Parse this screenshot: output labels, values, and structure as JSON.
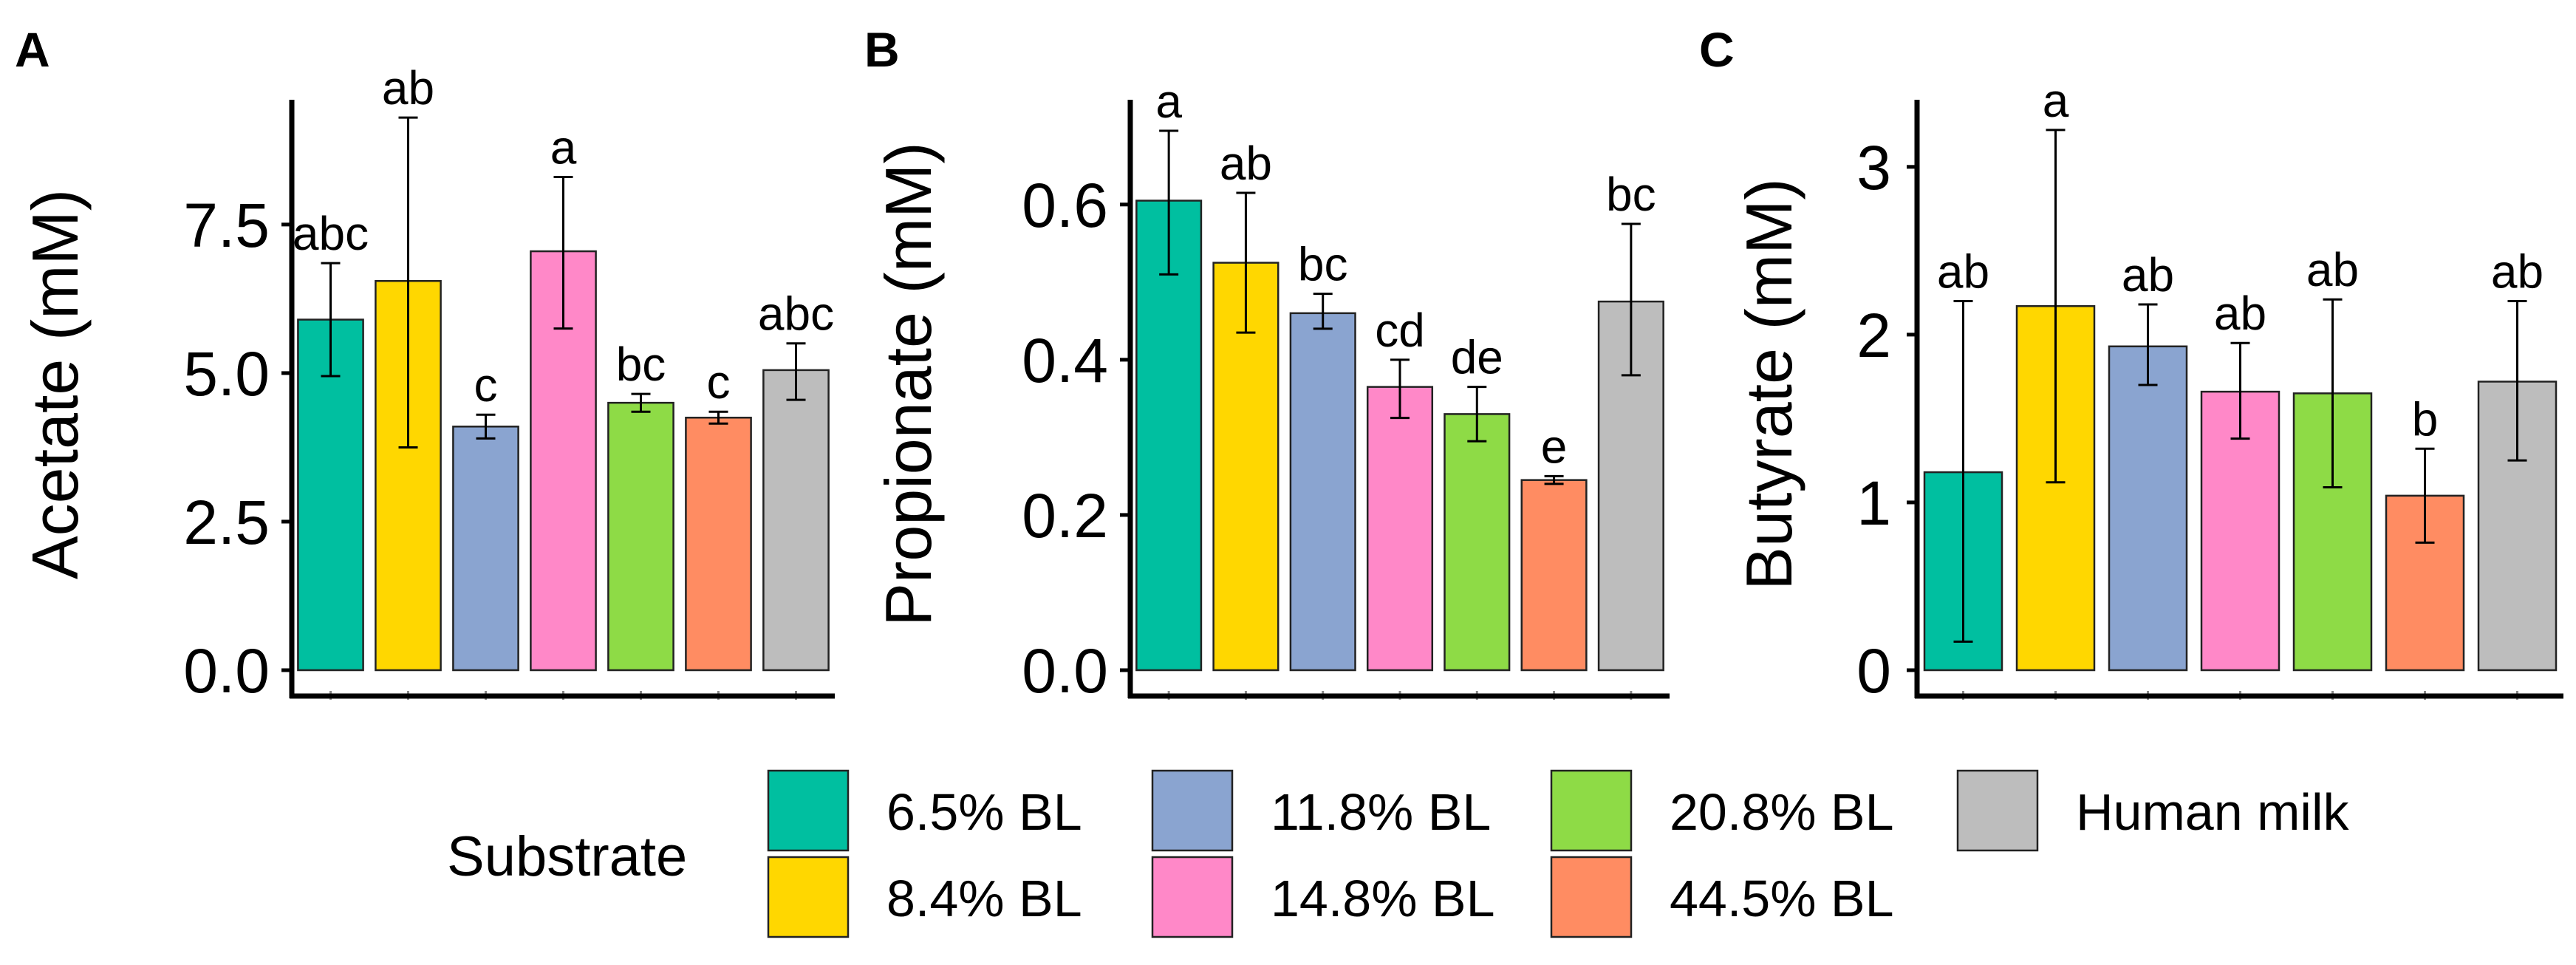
{
  "substrates": [
    "6.5% BL",
    "8.4% BL",
    "11.8% BL",
    "14.8% BL",
    "20.8% BL",
    "44.5% BL",
    "Human milk"
  ],
  "colors": [
    "#00BFA0",
    "#FFD700",
    "#8AA4D0",
    "#FF88C8",
    "#8EDB46",
    "#FF8C62",
    "#BDBDBD"
  ],
  "legend": {
    "title": "Substrate",
    "items": [
      "6.5% BL",
      "8.4% BL",
      "11.8% BL",
      "14.8% BL",
      "20.8% BL",
      "44.5% BL",
      "Human milk"
    ]
  },
  "chart_data": [
    {
      "panel": "A",
      "type": "bar",
      "ylabel": "Acetate (mM)",
      "xlabel": "",
      "ylim": [
        0,
        9.6
      ],
      "yticks": [
        0.0,
        2.5,
        5.0,
        7.5
      ],
      "ytick_labels": [
        "0.0",
        "2.5",
        "5.0",
        "7.5"
      ],
      "categories": [
        "6.5% BL",
        "8.4% BL",
        "11.8% BL",
        "14.8% BL",
        "20.8% BL",
        "44.5% BL",
        "Human milk"
      ],
      "values": [
        5.9,
        6.55,
        4.1,
        7.05,
        4.5,
        4.25,
        5.05
      ],
      "error_low": [
        4.95,
        3.75,
        3.9,
        5.75,
        4.35,
        4.15,
        4.55
      ],
      "error_high": [
        6.85,
        9.3,
        4.3,
        8.3,
        4.65,
        4.35,
        5.5
      ],
      "significance_letters": [
        "abc",
        "ab",
        "c",
        "a",
        "bc",
        "c",
        "abc"
      ]
    },
    {
      "panel": "B",
      "type": "bar",
      "ylabel": "Propionate (mM)",
      "xlabel": "",
      "ylim": [
        0,
        0.735
      ],
      "yticks": [
        0.0,
        0.2,
        0.4,
        0.6
      ],
      "ytick_labels": [
        "0.0",
        "0.2",
        "0.4",
        "0.6"
      ],
      "categories": [
        "6.5% BL",
        "8.4% BL",
        "11.8% BL",
        "14.8% BL",
        "20.8% BL",
        "44.5% BL",
        "Human milk"
      ],
      "values": [
        0.605,
        0.525,
        0.46,
        0.365,
        0.33,
        0.245,
        0.475
      ],
      "error_low": [
        0.51,
        0.435,
        0.44,
        0.325,
        0.295,
        0.24,
        0.38
      ],
      "error_high": [
        0.695,
        0.615,
        0.485,
        0.4,
        0.365,
        0.25,
        0.575
      ],
      "significance_letters": [
        "a",
        "ab",
        "bc",
        "cd",
        "de",
        "e",
        "bc"
      ]
    },
    {
      "panel": "C",
      "type": "bar",
      "ylabel": "Butyrate (mM)",
      "xlabel": "",
      "ylim": [
        0,
        3.4
      ],
      "yticks": [
        0,
        1,
        2,
        3
      ],
      "ytick_labels": [
        "0",
        "1",
        "2",
        "3"
      ],
      "categories": [
        "6.5% BL",
        "8.4% BL",
        "11.8% BL",
        "14.8% BL",
        "20.8% BL",
        "44.5% BL",
        "Human milk"
      ],
      "values": [
        1.18,
        2.17,
        1.93,
        1.66,
        1.65,
        1.04,
        1.72
      ],
      "error_low": [
        0.17,
        1.12,
        1.7,
        1.38,
        1.09,
        0.76,
        1.25
      ],
      "error_high": [
        2.2,
        3.22,
        2.18,
        1.95,
        2.21,
        1.32,
        2.2
      ],
      "significance_letters": [
        "ab",
        "a",
        "ab",
        "ab",
        "ab",
        "b",
        "ab"
      ]
    }
  ]
}
